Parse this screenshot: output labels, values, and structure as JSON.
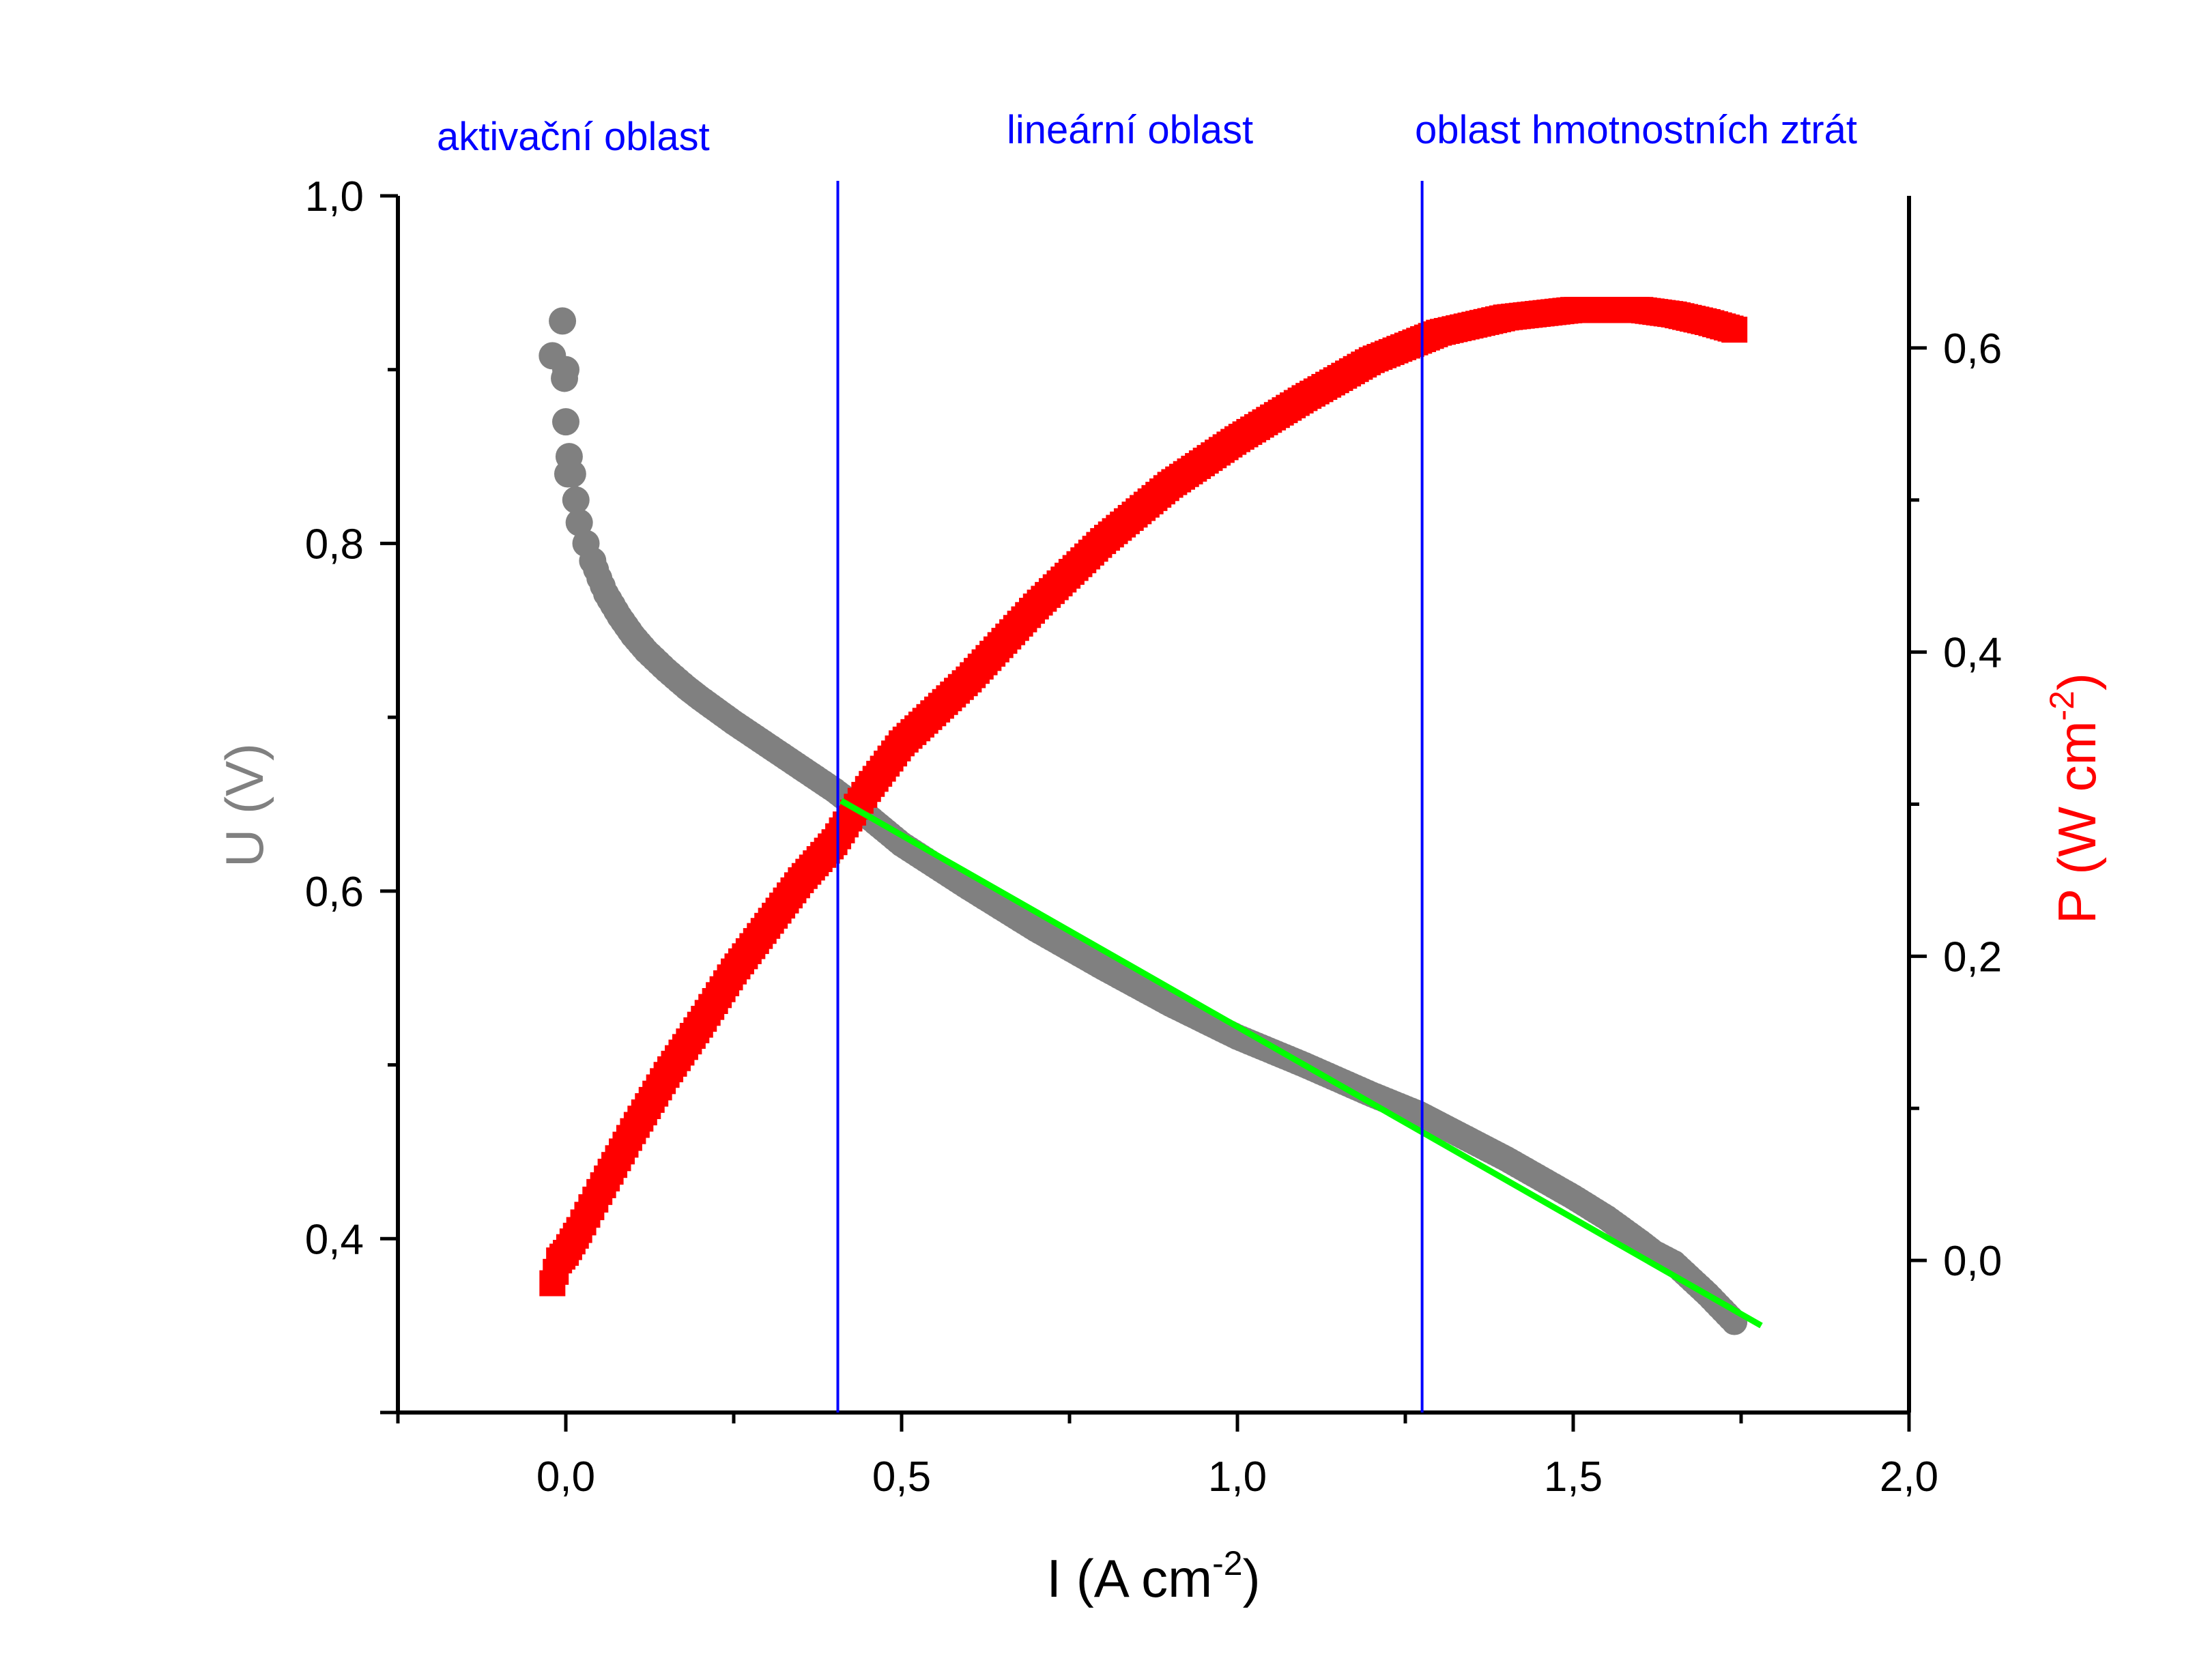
{
  "chart_data": {
    "type": "scatter",
    "x_axis": {
      "label": "I (A cm",
      "label_sup": "-2",
      "label_end": ")",
      "min": -0.25,
      "max": 2.0,
      "major_ticks": [
        0.0,
        0.5,
        1.0,
        1.5,
        2.0
      ],
      "tick_labels": [
        "0,0",
        "0,5",
        "1,0",
        "1,5",
        "2,0"
      ],
      "minor_ticks": [
        -0.25,
        0.25,
        0.75,
        1.25,
        1.75
      ]
    },
    "y_left_axis": {
      "label": "U (V)",
      "color": "#808080",
      "min": 0.3,
      "max": 1.0,
      "major_ticks": [
        0.4,
        0.6,
        0.8,
        1.0
      ],
      "tick_labels": [
        "0,4",
        "0,6",
        "0,8",
        "1,0"
      ],
      "minor_ticks": [
        0.5,
        0.7,
        0.9
      ]
    },
    "y_right_axis": {
      "label": "P (W cm",
      "label_sup": "-2",
      "label_end": ")",
      "color": "#ff0000",
      "min": -0.1,
      "max": 0.7,
      "major_ticks": [
        0.0,
        0.2,
        0.4,
        0.6
      ],
      "tick_labels": [
        "0,0",
        "0,2",
        "0,4",
        "0,6"
      ],
      "minor_ticks": [
        0.1,
        0.3,
        0.5
      ]
    },
    "region_labels": [
      "aktivační oblast",
      "lineární oblast",
      "oblast hmotnostních ztrát"
    ],
    "region_boundaries": [
      0.405,
      1.275
    ],
    "region_line_color": "#0000ff",
    "fit_line": {
      "color": "#00ff00",
      "x": [
        0.41,
        1.78
      ],
      "y": [
        0.652,
        0.35
      ]
    },
    "series": [
      {
        "axis": "left",
        "marker": "circle",
        "color": "#808080",
        "x": [
          -0.02,
          -0.005,
          -0.002,
          0.0,
          0.0,
          0.003,
          0.005,
          0.01,
          0.015,
          0.02,
          0.03,
          0.04,
          0.05,
          0.06,
          0.08,
          0.1,
          0.12,
          0.15,
          0.18,
          0.2,
          0.25,
          0.3,
          0.35,
          0.4,
          0.45,
          0.5,
          0.6,
          0.7,
          0.8,
          0.9,
          1.0,
          1.1,
          1.2,
          1.27,
          1.3,
          1.4,
          1.5,
          1.55,
          1.6,
          1.62,
          1.65,
          1.7,
          1.74
        ],
        "y": [
          0.908,
          0.928,
          0.895,
          0.9,
          0.87,
          0.84,
          0.85,
          0.84,
          0.825,
          0.812,
          0.8,
          0.79,
          0.78,
          0.771,
          0.758,
          0.747,
          0.738,
          0.727,
          0.717,
          0.711,
          0.697,
          0.684,
          0.671,
          0.658,
          0.643,
          0.627,
          0.602,
          0.578,
          0.556,
          0.535,
          0.516,
          0.5,
          0.483,
          0.472,
          0.466,
          0.446,
          0.424,
          0.412,
          0.398,
          0.392,
          0.386,
          0.368,
          0.352
        ]
      },
      {
        "axis": "right",
        "marker": "square",
        "color": "#ff0000",
        "x": [
          -0.02,
          -0.01,
          0.0,
          0.02,
          0.05,
          0.1,
          0.15,
          0.2,
          0.25,
          0.3,
          0.35,
          0.4,
          0.45,
          0.5,
          0.6,
          0.7,
          0.8,
          0.9,
          1.0,
          1.1,
          1.2,
          1.3,
          1.4,
          1.5,
          1.55,
          1.6,
          1.65,
          1.7,
          1.74
        ],
        "y": [
          -0.015,
          0.0,
          0.005,
          0.02,
          0.045,
          0.085,
          0.122,
          0.155,
          0.19,
          0.22,
          0.25,
          0.275,
          0.31,
          0.34,
          0.382,
          0.43,
          0.473,
          0.51,
          0.54,
          0.567,
          0.592,
          0.61,
          0.62,
          0.625,
          0.625,
          0.625,
          0.622,
          0.617,
          0.612
        ]
      }
    ]
  }
}
